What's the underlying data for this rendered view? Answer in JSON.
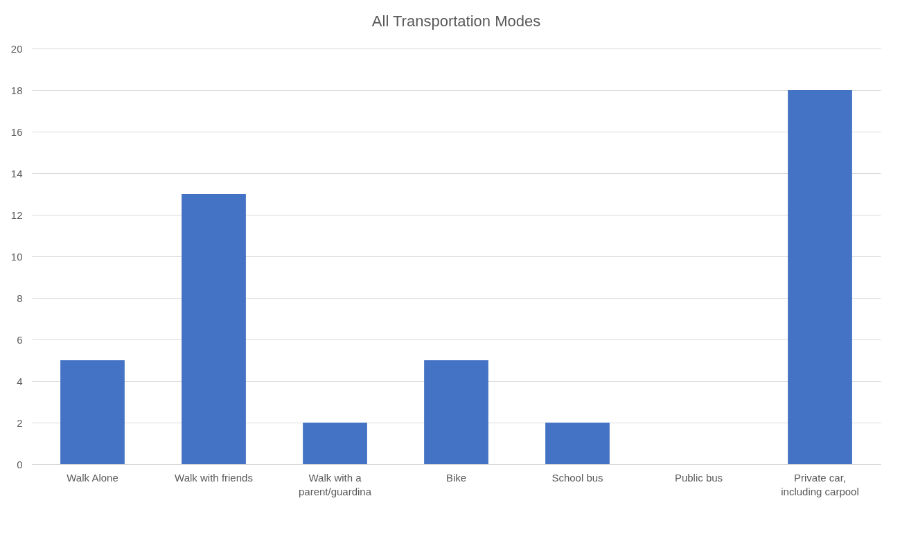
{
  "chart_data": {
    "type": "bar",
    "title": "All Transportation Modes",
    "categories": [
      "Walk Alone",
      "Walk with friends",
      "Walk with a parent/guardina",
      "Bike",
      "School bus",
      "Public bus",
      "Private car, including carpool"
    ],
    "values": [
      5,
      13,
      2,
      5,
      2,
      0,
      18
    ],
    "color": "#4472c4",
    "ylim": [
      0,
      20
    ],
    "yticks": [
      0,
      2,
      4,
      6,
      8,
      10,
      12,
      14,
      16,
      18,
      20
    ],
    "grid": "y"
  }
}
